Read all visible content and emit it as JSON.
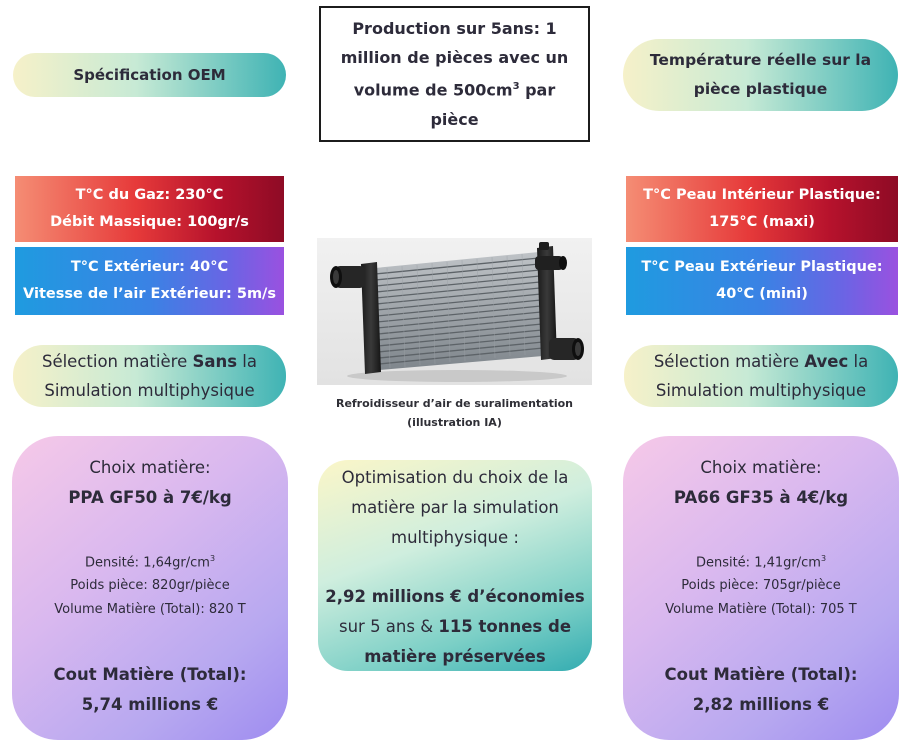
{
  "header": {
    "left_pill": "Spécification OEM",
    "right_pill_line1": "Température réelle sur la",
    "right_pill_line2": "pièce plastique",
    "production_line1": "Production sur 5ans: 1",
    "production_line2": "million de pièces avec un",
    "production_line3_pre": "volume de 500cm",
    "production_line3_sup": "3",
    "production_line3_post": " par",
    "production_line4": "pièce"
  },
  "oem_spec": {
    "gas_line1": "T°C du Gaz: 230°C",
    "gas_line2": "Débit Massique: 100gr/s",
    "ext_line1": "T°C Extérieur: 40°C",
    "ext_line2": "Vitesse de l’air Extérieur: 5m/s"
  },
  "real_temp": {
    "inner_line1": "T°C Peau Intérieur Plastique:",
    "inner_line2": "175°C (maxi)",
    "outer_line1": "T°C Peau Extérieur Plastique:",
    "outer_line2": "40°C (mini)"
  },
  "image": {
    "caption_line1": "Refroidisseur d’air de suralimentation",
    "caption_line2": "(illustration IA)"
  },
  "selection_left": {
    "pre": "Sélection matière ",
    "bold": "Sans",
    "post": " la",
    "line2": "Simulation multiphysique"
  },
  "selection_right": {
    "pre": "Sélection matière ",
    "bold": "Avec",
    "post": " la",
    "line2": "Simulation multiphysique"
  },
  "card_left": {
    "title": "Choix matière:",
    "material": "PPA GF50 à 7€/kg",
    "density_pre": "Densité: 1,64gr/cm",
    "density_sup": "3",
    "weight": "Poids pièce: 820gr/pièce",
    "volume": "Volume Matière (Total): 820 T",
    "cost_label": "Cout Matière (Total):",
    "cost_value": "5,74 millions €"
  },
  "card_right": {
    "title": "Choix matière:",
    "material": "PA66 GF35 à 4€/kg",
    "density_pre": "Densité: 1,41gr/cm",
    "density_sup": "3",
    "weight": "Poids pièce: 705gr/pièce",
    "volume": "Volume Matière (Total): 705 T",
    "cost_label": "Cout Matière (Total):",
    "cost_value": "2,82 millions €"
  },
  "card_center": {
    "line1": "Optimisation du choix de la",
    "line2": "matière par la simulation",
    "line3": "multiphysique :",
    "line4": "2,92 millions € d’économies",
    "line5_pre": "sur 5 ans & ",
    "line5_bold": "115 tonnes de",
    "line6": "matière préservées"
  },
  "colors": {
    "hot_start": "#f58d74",
    "hot_end": "#8e0b25",
    "cold_start": "#1f9be0",
    "cold_end": "#9a51e0",
    "teal_accent": "#33acb1",
    "card_lavender": "#b7a8f0"
  }
}
